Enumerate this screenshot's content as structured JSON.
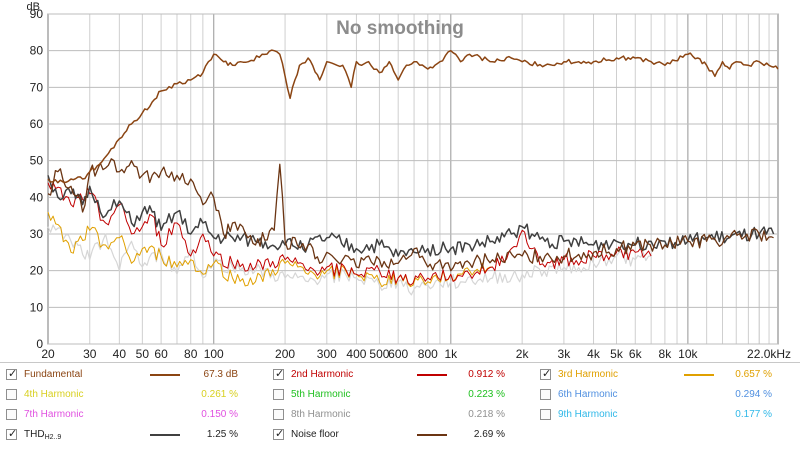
{
  "chart_data": {
    "type": "line",
    "title": "No smoothing",
    "ylabel": "dB",
    "xunit": "kHz",
    "xscale": "log",
    "xlim": [
      20,
      24000
    ],
    "ylim": [
      0,
      90
    ],
    "yticks": [
      0,
      10,
      20,
      30,
      40,
      50,
      60,
      70,
      80,
      90
    ],
    "xtick_labels": [
      {
        "v": 20,
        "t": "20"
      },
      {
        "v": 30,
        "t": "30"
      },
      {
        "v": 40,
        "t": "40"
      },
      {
        "v": 50,
        "t": "50"
      },
      {
        "v": 60,
        "t": "60"
      },
      {
        "v": 80,
        "t": "80"
      },
      {
        "v": 100,
        "t": "100"
      },
      {
        "v": 200,
        "t": "200"
      },
      {
        "v": 300,
        "t": "300"
      },
      {
        "v": 400,
        "t": "400"
      },
      {
        "v": 500,
        "t": "500"
      },
      {
        "v": 600,
        "t": "600"
      },
      {
        "v": 800,
        "t": "800"
      },
      {
        "v": 1000,
        "t": "1k"
      },
      {
        "v": 2000,
        "t": "2k"
      },
      {
        "v": 3000,
        "t": "3k"
      },
      {
        "v": 4000,
        "t": "4k"
      },
      {
        "v": 5000,
        "t": "5k"
      },
      {
        "v": 6000,
        "t": "6k"
      },
      {
        "v": 8000,
        "t": "8k"
      },
      {
        "v": 10000,
        "t": "10k"
      },
      {
        "v": 22000,
        "t": "22.0kHz"
      }
    ],
    "grid": true,
    "series": [
      {
        "name": "Fundamental",
        "color": "#8b4513",
        "width": 1.5,
        "x": [
          20,
          22,
          25,
          28,
          30,
          33,
          36,
          40,
          45,
          50,
          55,
          60,
          70,
          80,
          90,
          95,
          100,
          110,
          120,
          140,
          160,
          180,
          190,
          200,
          210,
          220,
          230,
          250,
          280,
          300,
          350,
          380,
          400,
          420,
          450,
          500,
          550,
          600,
          650,
          700,
          800,
          900,
          1000,
          1100,
          1200,
          1500,
          1800,
          2000,
          2500,
          3000,
          4000,
          5000,
          6000,
          7000,
          8000,
          10000,
          11000,
          12000,
          13000,
          14000,
          15000,
          16000,
          18000,
          20000,
          22000,
          24000
        ],
        "y": [
          45,
          44,
          45,
          45,
          47,
          49,
          52,
          56,
          60,
          63,
          66,
          69,
          71,
          72,
          74,
          77,
          79,
          77,
          76,
          77,
          79,
          80,
          79,
          73,
          67,
          72,
          76,
          78,
          72,
          77,
          76,
          70,
          77,
          76,
          77,
          74,
          77,
          72,
          76,
          77,
          75,
          77,
          80,
          77,
          79,
          77,
          78,
          77,
          76,
          77,
          77,
          78,
          78,
          77,
          76,
          79,
          78,
          76,
          73,
          77,
          75,
          77,
          76,
          77,
          76,
          75
        ]
      },
      {
        "name": "2nd Harmonic",
        "color": "#c00000",
        "width": 1,
        "x": [
          20,
          25,
          30,
          35,
          40,
          45,
          50,
          55,
          60,
          70,
          80,
          90,
          100,
          120,
          150,
          200,
          250,
          300,
          400,
          500,
          600,
          800,
          1000,
          1200,
          1500,
          1800,
          2000,
          2200,
          2500,
          3000,
          4000,
          5000,
          6000,
          7000
        ],
        "y": [
          44,
          38,
          41,
          33,
          38,
          30,
          32,
          35,
          27,
          33,
          24,
          30,
          24,
          22,
          21,
          23,
          20,
          21,
          19,
          20,
          18,
          18,
          19,
          19,
          21,
          26,
          31,
          26,
          21,
          23,
          24,
          25,
          25,
          24
        ]
      },
      {
        "name": "3rd Harmonic",
        "color": "#e0a000",
        "width": 1,
        "x": [
          20,
          25,
          30,
          35,
          40,
          45,
          50,
          60,
          70,
          80,
          90,
          100,
          120,
          150,
          200,
          250,
          300,
          400,
          500,
          600,
          800,
          1000,
          1200,
          1500
        ],
        "y": [
          36,
          25,
          31,
          27,
          29,
          22,
          26,
          24,
          21,
          23,
          19,
          22,
          18,
          17,
          22,
          19,
          20,
          19,
          17,
          18,
          17,
          19,
          20,
          21
        ]
      },
      {
        "name": "4th Harmonic",
        "color": "#d8d020",
        "width": 1,
        "x": [],
        "y": []
      },
      {
        "name": "5th Harmonic",
        "color": "#20c020",
        "width": 1,
        "x": [],
        "y": []
      },
      {
        "name": "6th Harmonic",
        "color": "#5090e0",
        "width": 1,
        "x": [],
        "y": []
      },
      {
        "name": "7th Harmonic",
        "color": "#e050e0",
        "width": 1,
        "x": [],
        "y": []
      },
      {
        "name": "8th Harmonic",
        "color": "#d6d6d6",
        "width": 1.2,
        "x": [
          20,
          25,
          30,
          35,
          40,
          45,
          50,
          60,
          70,
          80,
          90,
          100,
          120,
          150,
          200,
          250,
          300,
          400,
          500,
          600,
          700,
          800,
          1000,
          1500,
          2000,
          3000,
          4000,
          5000,
          6000,
          7000
        ],
        "y": [
          32,
          28,
          23,
          30,
          20,
          28,
          21,
          25,
          19,
          26,
          18,
          22,
          21,
          20,
          18,
          17,
          19,
          18,
          16,
          17,
          15,
          16,
          17,
          18,
          19,
          21,
          22,
          24,
          23,
          24
        ]
      },
      {
        "name": "9th Harmonic",
        "color": "#30b8e8",
        "width": 1,
        "x": [],
        "y": []
      },
      {
        "name": "THD",
        "color": "#404040",
        "width": 1.5,
        "x": [
          20,
          22,
          25,
          28,
          30,
          35,
          40,
          45,
          50,
          55,
          60,
          70,
          80,
          90,
          100,
          120,
          150,
          200,
          250,
          300,
          400,
          500,
          600,
          700,
          800,
          1000,
          1200,
          1500,
          1800,
          2000,
          2200,
          2500,
          3000,
          4000,
          5000,
          6000,
          7000,
          8000,
          10000,
          12000,
          15000,
          20000,
          23000
        ],
        "y": [
          46,
          40,
          41,
          38,
          43,
          35,
          39,
          33,
          36,
          36,
          31,
          36,
          30,
          33,
          29,
          29,
          28,
          27,
          27,
          29,
          26,
          27,
          24,
          25,
          26,
          26,
          27,
          28,
          30,
          32,
          30,
          28,
          28,
          27,
          28,
          27,
          28,
          28,
          28,
          29,
          29,
          30,
          30
        ]
      },
      {
        "name": "Noise floor",
        "color": "#6b3513",
        "width": 1.3,
        "x": [
          20,
          22,
          25,
          28,
          30,
          35,
          38,
          40,
          45,
          50,
          55,
          60,
          70,
          80,
          90,
          100,
          110,
          120,
          150,
          180,
          190,
          200,
          210,
          220,
          250,
          280,
          300,
          350,
          400,
          450,
          500,
          600,
          700,
          800,
          900,
          1000,
          1200,
          1500,
          2000,
          2500,
          3000,
          4000,
          5000,
          6000,
          8000,
          10000,
          12000,
          15000,
          20000,
          23000
        ],
        "y": [
          41,
          47,
          43,
          36,
          47,
          48,
          50,
          47,
          50,
          46,
          46,
          47,
          46,
          45,
          38,
          40,
          30,
          33,
          27,
          31,
          49,
          28,
          26,
          29,
          27,
          22,
          25,
          23,
          21,
          24,
          23,
          22,
          26,
          21,
          23,
          20,
          22,
          23,
          24,
          24,
          24,
          25,
          26,
          27,
          27,
          28,
          28,
          29,
          30,
          29
        ]
      }
    ]
  },
  "legend": {
    "rows": [
      [
        {
          "checked": true,
          "name": "Fundamental",
          "value": "67.3 dB",
          "color": "#8b4513",
          "swatch": true
        },
        {
          "checked": true,
          "name": "2nd Harmonic",
          "value": "0.912 %",
          "color": "#c00000",
          "swatch": true
        },
        {
          "checked": true,
          "name": "3rd Harmonic",
          "value": "0.657 %",
          "color": "#e0a000",
          "swatch": true
        }
      ],
      [
        {
          "checked": false,
          "name": "4th Harmonic",
          "value": "0.261 %",
          "color": "#d8d020",
          "swatch": false
        },
        {
          "checked": false,
          "name": "5th Harmonic",
          "value": "0.223 %",
          "color": "#20c020",
          "swatch": false
        },
        {
          "checked": false,
          "name": "6th Harmonic",
          "value": "0.294 %",
          "color": "#5090e0",
          "swatch": false
        }
      ],
      [
        {
          "checked": false,
          "name": "7th Harmonic",
          "value": "0.150 %",
          "color": "#e050e0",
          "swatch": false
        },
        {
          "checked": false,
          "name": "8th Harmonic",
          "value": "0.218 %",
          "color": "#909090",
          "swatch": false
        },
        {
          "checked": false,
          "name": "9th Harmonic",
          "value": "0.177 %",
          "color": "#30b8e8",
          "swatch": false
        }
      ],
      [
        {
          "checked": true,
          "name": "THD",
          "sub": "H2..9",
          "value": "1.25 %",
          "color": "#404040",
          "swatch": true,
          "textcolor": "#222222"
        },
        {
          "checked": true,
          "name": "Noise floor",
          "value": "2.69 %",
          "color": "#6b3513",
          "swatch": true,
          "textcolor": "#222222"
        }
      ]
    ]
  }
}
